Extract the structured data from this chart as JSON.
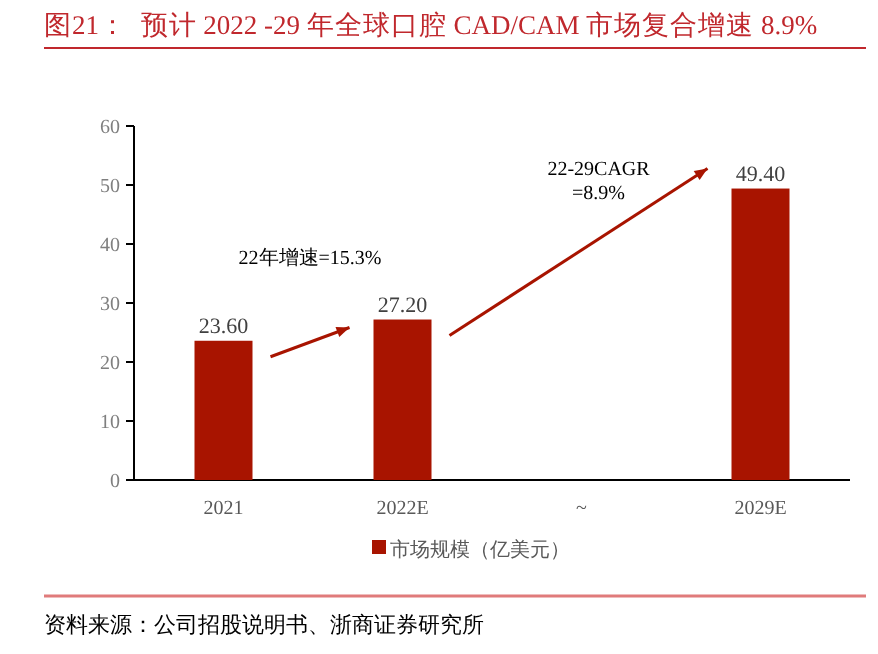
{
  "chart_data": {
    "type": "bar",
    "title": "图21：  预计 2022 -29 年全球口腔 CAD/CAM 市场复合增速 8.9%",
    "categories": [
      "2021",
      "2022E",
      "~",
      "2029E"
    ],
    "series": [
      {
        "name": "市场规模（亿美元）",
        "color": "#a81400",
        "values": [
          23.6,
          27.2,
          null,
          49.4
        ]
      }
    ],
    "value_labels": [
      "23.60",
      "27.20",
      null,
      "49.40"
    ],
    "ylim": [
      0,
      60
    ],
    "yticks": [
      0,
      10,
      20,
      30,
      40,
      50,
      60
    ],
    "grid": false,
    "legend": "bottom",
    "annotations": [
      "22年增速=15.3%",
      "22-29CAGR\n=8.9%",
      "资料来源：公司招股说明书、浙商证券研究所"
    ]
  }
}
